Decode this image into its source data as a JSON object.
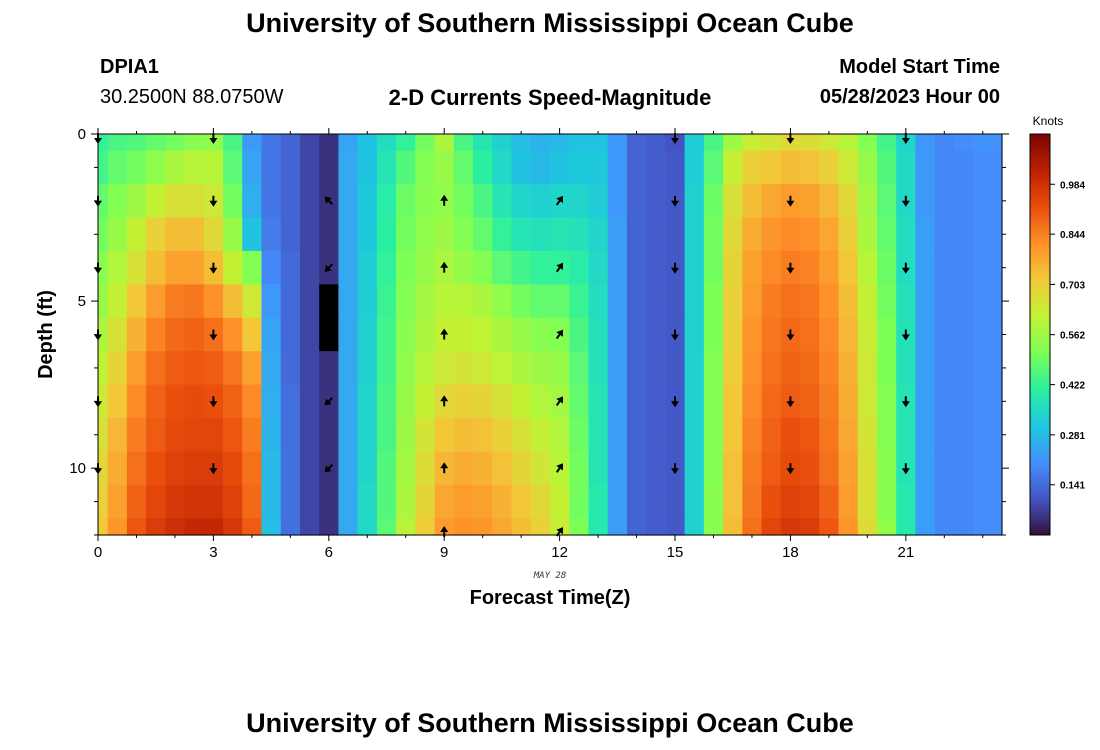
{
  "header": {
    "title": "University of Southern Mississippi Ocean Cube",
    "station_id": "DPIA1",
    "station_coords": "30.2500N  88.0750W",
    "plot_title": "2-D Currents Speed-Magnitude",
    "model_start_label": "Model Start Time",
    "model_start_value": "05/28/2023 Hour 00"
  },
  "footer": {
    "title": "University of Southern Mississippi Ocean Cube"
  },
  "chart_data": {
    "type": "heatmap",
    "title": "2-D Currents Speed-Magnitude",
    "xlabel": "Forecast Time(Z)",
    "x_sublabel": "MAY 28",
    "ylabel": "Depth (ft)",
    "xlim": [
      0,
      23.5
    ],
    "ylim": [
      12,
      0
    ],
    "x_ticks": [
      0,
      3,
      6,
      9,
      12,
      15,
      18,
      21
    ],
    "y_ticks": [
      0,
      5,
      10
    ],
    "colorbar": {
      "label": "Knots",
      "min": 0.0,
      "max": 1.125,
      "ticks": [
        "0.141",
        "0.281",
        "0.422",
        "0.562",
        "0.703",
        "0.844",
        "0.984"
      ],
      "colors": [
        "#30123b",
        "#4454c4",
        "#4490fe",
        "#1fc8de",
        "#29efa2",
        "#7dff56",
        "#c1f334",
        "#f1ca3a",
        "#fe922a",
        "#ea4f0d",
        "#be2102",
        "#7a0403"
      ]
    },
    "x": [
      0,
      0.5,
      1,
      1.5,
      2,
      2.5,
      3,
      3.5,
      4,
      4.5,
      5,
      5.5,
      6,
      6.5,
      7,
      7.5,
      8,
      8.5,
      9,
      9.5,
      10,
      10.5,
      11,
      11.5,
      12,
      12.5,
      13,
      13.5,
      14,
      14.5,
      15,
      15.5,
      16,
      16.5,
      17,
      17.5,
      18,
      18.5,
      19,
      19.5,
      20,
      20.5,
      21,
      21.5,
      22,
      22.5,
      23
    ],
    "depths": [
      0,
      1,
      2,
      3,
      4,
      5,
      6,
      7,
      8,
      9,
      10,
      11,
      12
    ],
    "speeds": [
      [
        0.42,
        0.45,
        0.46,
        0.48,
        0.5,
        0.53,
        0.54,
        0.45,
        0.22,
        0.16,
        0.13,
        0.08,
        0.05,
        0.24,
        0.3,
        0.36,
        0.42,
        0.5,
        0.58,
        0.45,
        0.38,
        0.33,
        0.29,
        0.27,
        0.28,
        0.3,
        0.3,
        0.22,
        0.13,
        0.12,
        0.1,
        0.32,
        0.45,
        0.56,
        0.63,
        0.65,
        0.68,
        0.67,
        0.64,
        0.6,
        0.52,
        0.44,
        0.34,
        0.22,
        0.19,
        0.2,
        0.21
      ],
      [
        0.44,
        0.48,
        0.5,
        0.54,
        0.58,
        0.6,
        0.6,
        0.47,
        0.24,
        0.16,
        0.13,
        0.08,
        0.05,
        0.25,
        0.3,
        0.38,
        0.46,
        0.52,
        0.55,
        0.48,
        0.41,
        0.35,
        0.3,
        0.28,
        0.3,
        0.31,
        0.31,
        0.22,
        0.13,
        0.12,
        0.11,
        0.32,
        0.47,
        0.62,
        0.7,
        0.72,
        0.74,
        0.73,
        0.7,
        0.64,
        0.55,
        0.46,
        0.35,
        0.22,
        0.19,
        0.19,
        0.2
      ],
      [
        0.48,
        0.52,
        0.56,
        0.62,
        0.66,
        0.66,
        0.64,
        0.5,
        0.26,
        0.16,
        0.13,
        0.08,
        0.05,
        0.25,
        0.31,
        0.4,
        0.49,
        0.53,
        0.54,
        0.5,
        0.45,
        0.38,
        0.34,
        0.33,
        0.34,
        0.34,
        0.32,
        0.22,
        0.13,
        0.12,
        0.11,
        0.33,
        0.49,
        0.66,
        0.74,
        0.78,
        0.8,
        0.79,
        0.75,
        0.68,
        0.57,
        0.47,
        0.35,
        0.22,
        0.19,
        0.19,
        0.2
      ],
      [
        0.5,
        0.55,
        0.62,
        0.7,
        0.74,
        0.74,
        0.68,
        0.55,
        0.3,
        0.17,
        0.13,
        0.08,
        0.05,
        0.25,
        0.31,
        0.41,
        0.5,
        0.54,
        0.56,
        0.52,
        0.48,
        0.42,
        0.38,
        0.37,
        0.38,
        0.37,
        0.34,
        0.23,
        0.13,
        0.12,
        0.11,
        0.33,
        0.5,
        0.68,
        0.77,
        0.81,
        0.83,
        0.82,
        0.78,
        0.7,
        0.58,
        0.48,
        0.36,
        0.23,
        0.19,
        0.19,
        0.2
      ],
      [
        0.53,
        0.59,
        0.66,
        0.74,
        0.79,
        0.79,
        0.74,
        0.62,
        0.52,
        0.19,
        0.14,
        0.08,
        0.05,
        0.25,
        0.32,
        0.42,
        0.51,
        0.55,
        0.58,
        0.55,
        0.52,
        0.47,
        0.44,
        0.42,
        0.42,
        0.4,
        0.35,
        0.23,
        0.13,
        0.12,
        0.11,
        0.33,
        0.5,
        0.69,
        0.79,
        0.83,
        0.85,
        0.84,
        0.8,
        0.72,
        0.6,
        0.49,
        0.36,
        0.23,
        0.19,
        0.19,
        0.2
      ],
      [
        0.55,
        0.62,
        0.72,
        0.8,
        0.85,
        0.86,
        0.82,
        0.74,
        0.64,
        0.22,
        0.14,
        0.08,
        0.05,
        0.25,
        0.32,
        0.43,
        0.52,
        0.57,
        0.6,
        0.6,
        0.58,
        0.54,
        0.5,
        0.48,
        0.48,
        0.43,
        0.36,
        0.23,
        0.13,
        0.12,
        0.11,
        0.33,
        0.51,
        0.7,
        0.8,
        0.85,
        0.87,
        0.86,
        0.82,
        0.74,
        0.62,
        0.5,
        0.37,
        0.23,
        0.19,
        0.19,
        0.2
      ],
      [
        0.58,
        0.66,
        0.76,
        0.84,
        0.88,
        0.89,
        0.87,
        0.82,
        0.72,
        0.24,
        0.14,
        0.08,
        0.02,
        0.25,
        0.33,
        0.44,
        0.53,
        0.58,
        0.62,
        0.62,
        0.61,
        0.58,
        0.55,
        0.53,
        0.52,
        0.45,
        0.37,
        0.23,
        0.13,
        0.12,
        0.11,
        0.33,
        0.51,
        0.7,
        0.81,
        0.86,
        0.88,
        0.87,
        0.83,
        0.75,
        0.63,
        0.51,
        0.37,
        0.23,
        0.19,
        0.19,
        0.2
      ],
      [
        0.61,
        0.69,
        0.8,
        0.87,
        0.9,
        0.91,
        0.9,
        0.86,
        0.79,
        0.25,
        0.14,
        0.08,
        0.05,
        0.25,
        0.33,
        0.44,
        0.54,
        0.6,
        0.64,
        0.65,
        0.64,
        0.61,
        0.58,
        0.56,
        0.55,
        0.47,
        0.37,
        0.23,
        0.13,
        0.12,
        0.11,
        0.33,
        0.52,
        0.71,
        0.82,
        0.87,
        0.89,
        0.88,
        0.84,
        0.76,
        0.64,
        0.51,
        0.37,
        0.23,
        0.19,
        0.19,
        0.2
      ],
      [
        0.64,
        0.72,
        0.83,
        0.89,
        0.92,
        0.93,
        0.92,
        0.89,
        0.83,
        0.26,
        0.15,
        0.08,
        0.05,
        0.25,
        0.34,
        0.45,
        0.55,
        0.62,
        0.68,
        0.7,
        0.69,
        0.66,
        0.62,
        0.59,
        0.57,
        0.48,
        0.38,
        0.23,
        0.13,
        0.12,
        0.11,
        0.33,
        0.52,
        0.72,
        0.83,
        0.88,
        0.9,
        0.89,
        0.85,
        0.77,
        0.64,
        0.52,
        0.38,
        0.23,
        0.19,
        0.19,
        0.2
      ],
      [
        0.66,
        0.75,
        0.85,
        0.9,
        0.93,
        0.94,
        0.94,
        0.91,
        0.85,
        0.27,
        0.15,
        0.08,
        0.05,
        0.25,
        0.34,
        0.45,
        0.56,
        0.65,
        0.72,
        0.74,
        0.73,
        0.7,
        0.66,
        0.62,
        0.59,
        0.49,
        0.38,
        0.23,
        0.13,
        0.12,
        0.11,
        0.33,
        0.52,
        0.72,
        0.84,
        0.89,
        0.92,
        0.91,
        0.86,
        0.78,
        0.65,
        0.52,
        0.38,
        0.23,
        0.19,
        0.19,
        0.2
      ],
      [
        0.68,
        0.77,
        0.87,
        0.92,
        0.95,
        0.96,
        0.96,
        0.93,
        0.87,
        0.28,
        0.15,
        0.08,
        0.05,
        0.25,
        0.34,
        0.46,
        0.57,
        0.67,
        0.75,
        0.77,
        0.76,
        0.73,
        0.69,
        0.65,
        0.6,
        0.5,
        0.38,
        0.23,
        0.13,
        0.12,
        0.11,
        0.33,
        0.52,
        0.73,
        0.85,
        0.9,
        0.93,
        0.92,
        0.87,
        0.79,
        0.66,
        0.53,
        0.38,
        0.23,
        0.19,
        0.19,
        0.2
      ],
      [
        0.7,
        0.79,
        0.89,
        0.94,
        0.97,
        0.98,
        0.98,
        0.95,
        0.88,
        0.28,
        0.15,
        0.08,
        0.05,
        0.25,
        0.35,
        0.46,
        0.58,
        0.69,
        0.78,
        0.8,
        0.79,
        0.76,
        0.72,
        0.68,
        0.62,
        0.5,
        0.39,
        0.23,
        0.13,
        0.12,
        0.11,
        0.33,
        0.53,
        0.73,
        0.86,
        0.92,
        0.95,
        0.94,
        0.89,
        0.8,
        0.66,
        0.53,
        0.39,
        0.23,
        0.19,
        0.19,
        0.2
      ],
      [
        0.72,
        0.81,
        0.91,
        0.96,
        0.99,
        1.01,
        1.01,
        0.97,
        0.9,
        0.29,
        0.15,
        0.08,
        0.05,
        0.25,
        0.35,
        0.47,
        0.6,
        0.71,
        0.8,
        0.82,
        0.81,
        0.78,
        0.74,
        0.7,
        0.63,
        0.51,
        0.39,
        0.23,
        0.13,
        0.12,
        0.11,
        0.33,
        0.53,
        0.74,
        0.87,
        0.94,
        0.97,
        0.96,
        0.91,
        0.81,
        0.67,
        0.54,
        0.39,
        0.23,
        0.19,
        0.19,
        0.2
      ]
    ],
    "null_cells": [
      [
        12,
        5
      ],
      [
        12,
        6
      ]
    ],
    "arrows": [
      {
        "time": 0,
        "dir": "down",
        "depths": [
          0,
          2,
          4,
          6,
          8,
          10
        ]
      },
      {
        "time": 3,
        "dir": "down",
        "depths": [
          0,
          2,
          4,
          6,
          8,
          10
        ]
      },
      {
        "time": 6,
        "dir": "up-left",
        "depths": [
          2
        ]
      },
      {
        "time": 6,
        "dir": "down-left",
        "depths": [
          4,
          8,
          10
        ]
      },
      {
        "time": 9,
        "dir": "up",
        "depths": [
          2,
          4,
          6,
          8,
          10,
          12
        ]
      },
      {
        "time": 12,
        "dir": "up-right",
        "depths": [
          2,
          4,
          6,
          8,
          10,
          12
        ]
      },
      {
        "time": 15,
        "dir": "down",
        "depths": [
          0,
          2,
          4,
          6,
          8,
          10
        ]
      },
      {
        "time": 18,
        "dir": "down",
        "depths": [
          0,
          2,
          4,
          6,
          8,
          10
        ]
      },
      {
        "time": 21,
        "dir": "down",
        "depths": [
          0,
          2,
          4,
          6,
          8,
          10
        ]
      }
    ]
  }
}
